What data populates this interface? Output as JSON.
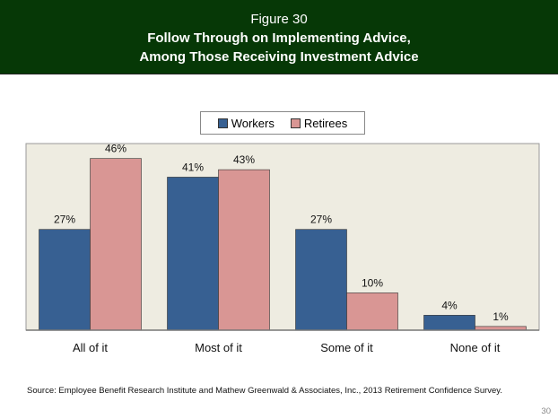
{
  "header": {
    "figure_label": "Figure 30",
    "title_line1": "Follow Through on Implementing Advice,",
    "title_line2": "Among Those Receiving Investment Advice"
  },
  "chart_data": {
    "type": "bar",
    "categories": [
      "All of it",
      "Most of it",
      "Some of it",
      "None of it"
    ],
    "series": [
      {
        "name": "Workers",
        "values": [
          27,
          41,
          27,
          4
        ],
        "labels": [
          "27%",
          "41%",
          "27%",
          "4%"
        ],
        "color": "#376092"
      },
      {
        "name": "Retirees",
        "values": [
          46,
          43,
          10,
          1
        ],
        "labels": [
          "46%",
          "43%",
          "10%",
          "1%"
        ],
        "color": "#d99694"
      }
    ],
    "ylim": [
      0,
      50
    ],
    "grid": false,
    "legend_placement": "top",
    "plot_background": "#eeece1"
  },
  "footer": {
    "source": "Source:  Employee Benefit Research Institute and Mathew Greenwald & Associates, Inc., 2013 Retirement Confidence Survey.",
    "page_number": "30"
  }
}
